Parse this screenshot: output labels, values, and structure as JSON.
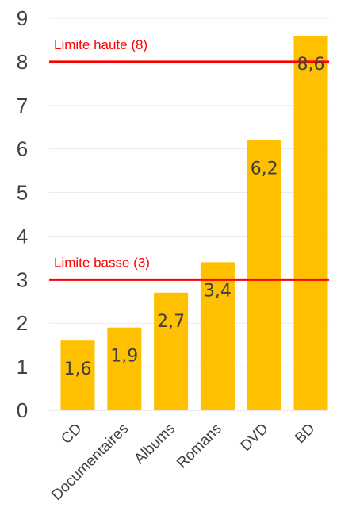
{
  "chart_data": {
    "type": "bar",
    "categories": [
      "CD",
      "Documentaires",
      "Albums",
      "Romans",
      "DVD",
      "BD"
    ],
    "values": [
      1.6,
      1.9,
      2.7,
      3.4,
      6.2,
      8.6
    ],
    "data_labels": [
      "1,6",
      "1,9",
      "2,7",
      "3,4",
      "6,2",
      "8,6"
    ],
    "yticks": [
      "0",
      "1",
      "2",
      "3",
      "4",
      "5",
      "6",
      "7",
      "8",
      "9"
    ],
    "ylim": [
      0,
      9
    ],
    "grid": true,
    "bar_color": "#FFC000",
    "reference_lines": [
      {
        "label": "Limite haute (8)",
        "value": 8,
        "color": "#FF0000"
      },
      {
        "label": "Limite basse (3)",
        "value": 3,
        "color": "#FF0000"
      }
    ]
  }
}
